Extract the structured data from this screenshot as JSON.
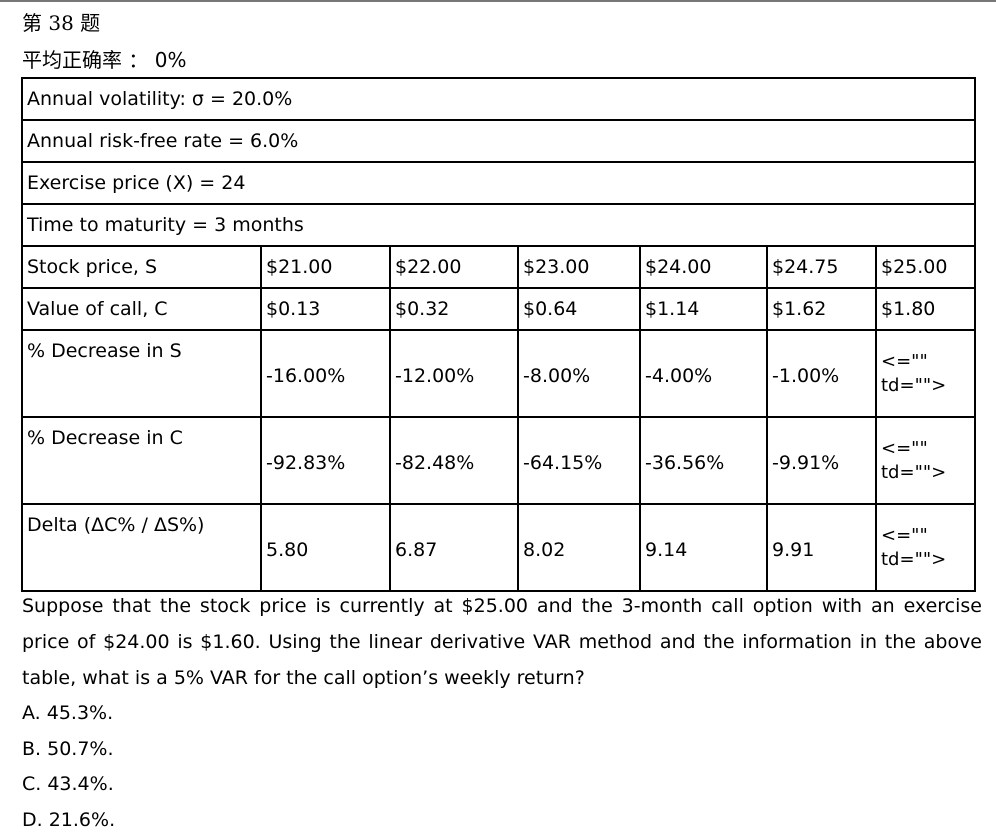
{
  "question_number": "第 38 题",
  "stats": {
    "label": "平均正确率",
    "separator": "：",
    "value": "0%"
  },
  "params": [
    "Annual volatility: σ = 20.0%",
    "Annual risk-free rate = 6.0%",
    "Exercise price (X) = 24",
    "Time to maturity = 3 months"
  ],
  "table": {
    "rows": [
      {
        "label": "Stock price, S",
        "cells": [
          "$21.00",
          "$22.00",
          "$23.00",
          "$24.00",
          "$24.75",
          "$25.00"
        ]
      },
      {
        "label": "Value of call, C",
        "cells": [
          "$0.13",
          "$0.32",
          "$0.64",
          "$1.14",
          "$1.62",
          "$1.80"
        ]
      },
      {
        "label": "% Decrease in S",
        "cells": [
          "-16.00%",
          "-12.00%",
          "-8.00%",
          "-4.00%",
          "-1.00%",
          "<=\"\" td=\"\">"
        ]
      },
      {
        "label": "% Decrease in C",
        "cells": [
          "-92.83%",
          "-82.48%",
          "-64.15%",
          "-36.56%",
          "-9.91%",
          "<=\"\" td=\"\">"
        ]
      },
      {
        "label": "Delta (ΔC% / ΔS%)",
        "cells": [
          "5.80",
          "6.87",
          "8.02",
          "9.14",
          "9.91",
          "<=\"\" td=\"\">"
        ]
      }
    ]
  },
  "question_text": "Suppose that the stock price is currently at $25.00 and the 3-month call option with an exercise price of $24.00 is $1.60. Using the linear derivative VAR method and the information in the above table, what is a 5% VAR for the call option’s weekly return?",
  "options": [
    "A. 45.3%.",
    "B. 50.7%.",
    "C. 43.4%.",
    "D. 21.6%."
  ]
}
